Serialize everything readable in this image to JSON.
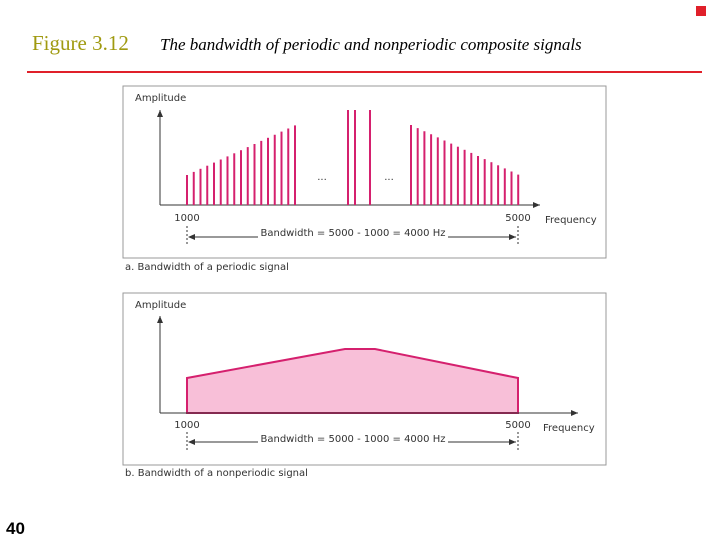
{
  "header": {
    "figure": "Figure 3.12",
    "title": "The bandwidth of periodic and nonperiodic composite signals"
  },
  "panels": [
    {
      "y_label": "Amplitude",
      "x_label": "Frequency",
      "ticks": [
        "1000",
        "5000"
      ],
      "ellipsis": "...",
      "bandwidth_label": "Bandwidth = 5000 - 1000 = 4000 Hz",
      "caption": "a. Bandwidth of a periodic signal"
    },
    {
      "y_label": "Amplitude",
      "x_label": "Frequency",
      "ticks": [
        "1000",
        "5000"
      ],
      "bandwidth_label": "Bandwidth = 5000 - 1000 = 4000 Hz",
      "caption": "b. Bandwidth of a nonperiodic signal"
    }
  ],
  "page_number": "40"
}
